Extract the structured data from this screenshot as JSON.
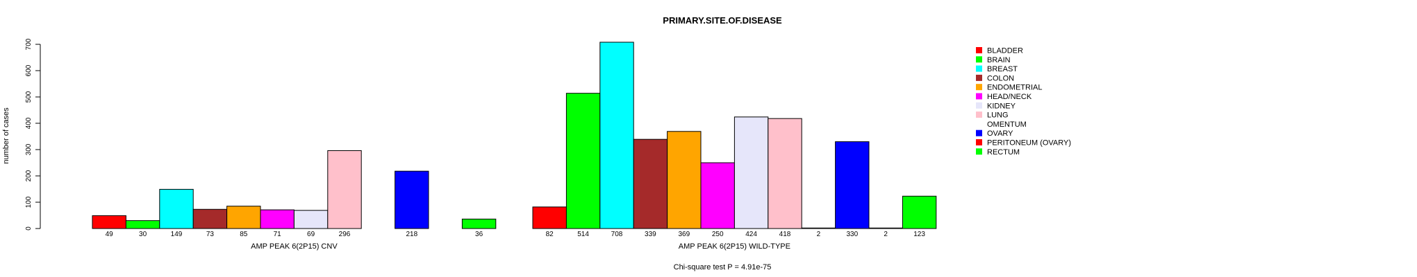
{
  "chart_data": {
    "type": "bar",
    "title": "PRIMARY.SITE.OF.DISEASE",
    "ylabel": "number of cases",
    "ylim": [
      0,
      700
    ],
    "yticks": [
      0,
      100,
      200,
      300,
      400,
      500,
      600,
      700
    ],
    "footer": "Chi-square test P = 4.91e-75",
    "categories": [
      "BLADDER",
      "BRAIN",
      "BREAST",
      "COLON",
      "ENDOMETRIAL",
      "HEAD/NECK",
      "KIDNEY",
      "LUNG",
      "OMENTUM",
      "OVARY",
      "PERITONEUM (OVARY)",
      "RECTUM"
    ],
    "colors": [
      "#ff0000",
      "#00ff00",
      "#00ffff",
      "#a52a2a",
      "#ffa500",
      "#ff00ff",
      "#e6e6fa",
      "#ffc0cb",
      "#ffffff",
      "#0000ff",
      "#ff0000",
      "#00ff00"
    ],
    "groups": [
      {
        "name": "AMP PEAK  6(2P15) CNV",
        "values": [
          49,
          30,
          149,
          73,
          85,
          71,
          69,
          296,
          0,
          218,
          0,
          36
        ],
        "labels": [
          "49",
          "30",
          "149",
          "73",
          "85",
          "71",
          "69",
          "296",
          "",
          "218",
          "",
          "36"
        ]
      },
      {
        "name": "AMP PEAK  6(2P15) WILD-TYPE",
        "values": [
          82,
          514,
          708,
          339,
          369,
          250,
          424,
          418,
          2,
          330,
          2,
          123
        ],
        "labels": [
          "82",
          "514",
          "708",
          "339",
          "369",
          "250",
          "424",
          "418",
          "2",
          "330",
          "2",
          "123"
        ]
      }
    ],
    "legend": [
      "BLADDER",
      "BRAIN",
      "BREAST",
      "COLON",
      "ENDOMETRIAL",
      "HEAD/NECK",
      "KIDNEY",
      "LUNG",
      "OMENTUM",
      "OVARY",
      "PERITONEUM (OVARY)",
      "RECTUM"
    ],
    "legend_position": "right",
    "grid": false
  }
}
